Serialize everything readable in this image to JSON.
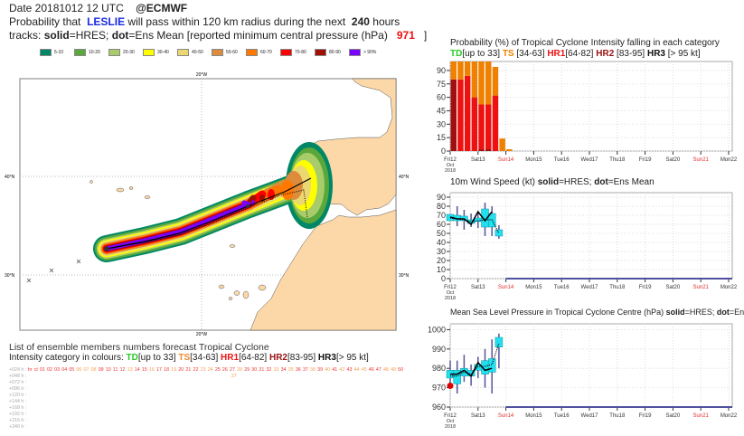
{
  "header": {
    "date_line": "Date 20181012 12 UTC",
    "org": "@ECMWF",
    "prob_prefix": "Probability that",
    "storm_name": "LESLIE",
    "prob_suffix": "will pass within 120 km radius during the next",
    "hours": "240",
    "hours_unit": "hours",
    "tracks_prefix": "tracks:",
    "solid": "solid",
    "solid_eq": "=HRES;",
    "dot": "dot",
    "dot_eq": "=Ens Mean [reported minimum central pressure (hPa)",
    "pressure": "971",
    "close": "]"
  },
  "legend": [
    {
      "label": "5-10",
      "color": "#008866"
    },
    {
      "label": "10-20",
      "color": "#5aa83c"
    },
    {
      "label": "20-30",
      "color": "#a8cc6a"
    },
    {
      "label": "30-40",
      "color": "#ffff00"
    },
    {
      "label": "40-50",
      "color": "#ecd870"
    },
    {
      "label": "50-60",
      "color": "#dc8c3c"
    },
    {
      "label": "60-70",
      "color": "#ff7800"
    },
    {
      "label": "70-80",
      "color": "#ff0000"
    },
    {
      "label": "80-90",
      "color": "#a01000"
    },
    {
      "label": "> 90%",
      "color": "#7a00ff"
    }
  ],
  "map": {
    "lon_label_top": "20°W",
    "lon_label_bottom": "20°W",
    "lat_40_left": "40°N",
    "lat_40_right": "40°N",
    "lat_30_left": "30°N",
    "lat_30_right": "30°N",
    "land_color": "#fcd8a8"
  },
  "ensemble_list": {
    "title": "List of ensemble members numbers forecast Tropical Cyclone",
    "cat_prefix": "Intensity category in colours:",
    "cats": [
      {
        "name": "TD",
        "range": "[up to 33]",
        "color": "#22cc22"
      },
      {
        "name": "TS",
        "range": "[34-63]",
        "color": "#f08a30"
      },
      {
        "name": "HR1",
        "range": "[64-82]",
        "color": "#ee1111"
      },
      {
        "name": "HR2",
        "range": "[83-95]",
        "color": "#991111"
      },
      {
        "name": "HR3",
        "range": "[> 95 kt]",
        "color": "#111111"
      }
    ],
    "rows": [
      {
        "label": "+024 h :",
        "members": [
          "hr",
          "ct",
          "01",
          "02",
          "03",
          "04",
          "05",
          "06",
          "07",
          "08",
          "09",
          "10",
          "11",
          "12",
          "13",
          "14",
          "15",
          "16",
          "17",
          "18",
          "19",
          "20",
          "21",
          "22",
          "23",
          "24",
          "25",
          "26",
          "27",
          "28",
          "29",
          "30",
          "31",
          "32",
          "33",
          "34",
          "35",
          "36",
          "37",
          "38",
          "39",
          "40",
          "41",
          "42",
          "43",
          "44",
          "45",
          "46",
          "47",
          "48",
          "49",
          "50"
        ],
        "ts_members": [
          "06",
          "07",
          "08",
          "13",
          "16",
          "19",
          "23",
          "24",
          "28",
          "33",
          "35",
          "38",
          "40",
          "42",
          "44",
          "45",
          "48",
          "49"
        ]
      },
      {
        "label": "+048 h :",
        "members": [
          "27"
        ],
        "ts_members": [
          "27"
        ]
      },
      {
        "label": "+072 h :",
        "members": [],
        "ts_members": []
      },
      {
        "label": "+096 h :",
        "members": [],
        "ts_members": []
      },
      {
        "label": "+120 h :",
        "members": [],
        "ts_members": []
      },
      {
        "label": "+144 h :",
        "members": [],
        "ts_members": []
      },
      {
        "label": "+168 h :",
        "members": [],
        "ts_members": []
      },
      {
        "label": "+192 h :",
        "members": [],
        "ts_members": []
      },
      {
        "label": "+216 h :",
        "members": [],
        "ts_members": []
      },
      {
        "label": "+240 h :",
        "members": [],
        "ts_members": []
      }
    ]
  },
  "chart_data": [
    {
      "type": "bar",
      "title": "Probability (%) of Tropical Cyclone Intensity falling in each category",
      "subtitle_cats": [
        {
          "name": "TD",
          "range": "[up to 33]",
          "color": "#22cc22"
        },
        {
          "name": "TS",
          "range": " [34-63]",
          "color": "#f08000"
        },
        {
          "name": "HR1",
          "range": "[64-82]",
          "color": "#ee1111"
        },
        {
          "name": "HR2",
          "range": " [83-95]",
          "color": "#991111"
        },
        {
          "name": "HR3",
          "range": " [> 95 kt]",
          "color": "#111111"
        }
      ],
      "ylim": [
        0,
        100
      ],
      "yticks": [
        0,
        15,
        30,
        45,
        60,
        75,
        90
      ],
      "x_hours": [
        0,
        6,
        12,
        18,
        24,
        30,
        36,
        42,
        48
      ],
      "series": [
        {
          "name": "HR2",
          "color": "#a01010",
          "values": [
            80,
            0,
            0,
            0,
            2,
            2,
            0,
            0,
            0
          ]
        },
        {
          "name": "HR1",
          "color": "#ee1111",
          "values": [
            0,
            80,
            84,
            60,
            50,
            50,
            62,
            0,
            0
          ]
        },
        {
          "name": "TS",
          "color": "#f08000",
          "values": [
            20,
            20,
            16,
            40,
            48,
            48,
            32,
            14,
            2
          ]
        }
      ]
    },
    {
      "type": "line",
      "title_parts": [
        "10m Wind Speed (kt) ",
        "solid",
        "=HRES; ",
        "dot",
        "=Ens Mean"
      ],
      "ylim": [
        0,
        95
      ],
      "yticks": [
        0,
        10,
        20,
        30,
        40,
        50,
        60,
        70,
        80,
        90
      ],
      "x_hours": [
        0,
        6,
        12,
        18,
        24,
        30,
        36,
        42
      ],
      "hres": [
        68,
        66,
        66,
        60,
        74,
        64,
        74
      ],
      "ens_mean": [
        67,
        66,
        65,
        63,
        64,
        65,
        65,
        50
      ],
      "boxes": [
        {
          "lo": 64,
          "q1": 64,
          "q3": 71,
          "hi": 71
        },
        {
          "lo": 58,
          "q1": 64,
          "q3": 70,
          "hi": 80
        },
        {
          "lo": 54,
          "q1": 64,
          "q3": 69,
          "hi": 76
        },
        {
          "lo": 57,
          "q1": 61,
          "q3": 65,
          "hi": 72
        },
        {
          "lo": 56,
          "q1": 63,
          "q3": 67,
          "hi": 73
        },
        {
          "lo": 47,
          "q1": 57,
          "q3": 77,
          "hi": 84
        },
        {
          "lo": 47,
          "q1": 57,
          "q3": 72,
          "hi": 80
        },
        {
          "lo": 44,
          "q1": 47,
          "q3": 54,
          "hi": 59
        }
      ]
    },
    {
      "type": "line",
      "title_parts": [
        "Mean Sea Level Pressure in Tropical Cyclone Centre (hPa) ",
        "solid",
        "=HRES; ",
        "dot",
        "=Ens Mean"
      ],
      "ylim": [
        960,
        1003
      ],
      "yticks": [
        960,
        970,
        980,
        990,
        1000
      ],
      "x_hours": [
        0,
        6,
        12,
        18,
        24,
        30,
        36,
        42
      ],
      "hres": [
        977,
        977,
        979,
        976,
        983,
        979,
        980
      ],
      "ens_mean": [
        976,
        976,
        978,
        977,
        981,
        981,
        982,
        993
      ],
      "observed": 971,
      "boxes": [
        {
          "lo": 970,
          "q1": 975,
          "q3": 979,
          "hi": 984
        },
        {
          "lo": 967,
          "q1": 972,
          "q3": 979,
          "hi": 984
        },
        {
          "lo": 973,
          "q1": 976,
          "q3": 980,
          "hi": 987
        },
        {
          "lo": 971,
          "q1": 976,
          "q3": 979,
          "hi": 982
        },
        {
          "lo": 975,
          "q1": 979,
          "q3": 982,
          "hi": 986
        },
        {
          "lo": 970,
          "q1": 977,
          "q3": 984,
          "hi": 990
        },
        {
          "lo": 967,
          "q1": 978,
          "q3": 985,
          "hi": 995
        },
        {
          "lo": 980,
          "q1": 991,
          "q3": 996,
          "hi": 998
        }
      ]
    }
  ],
  "x_axis": {
    "days": [
      {
        "label": "Fri12",
        "weekend": false
      },
      {
        "label": "Sat13",
        "weekend": false
      },
      {
        "label": "Sun14",
        "weekend": true
      },
      {
        "label": "Mon15",
        "weekend": false
      },
      {
        "label": "Tue16",
        "weekend": false
      },
      {
        "label": "Wed17",
        "weekend": false
      },
      {
        "label": "Thu18",
        "weekend": false
      },
      {
        "label": "Fri19",
        "weekend": false
      },
      {
        "label": "Sat20",
        "weekend": false
      },
      {
        "label": "Sun21",
        "weekend": true
      },
      {
        "label": "Mon22",
        "weekend": false
      }
    ],
    "month": "Oct",
    "year": "2018"
  }
}
